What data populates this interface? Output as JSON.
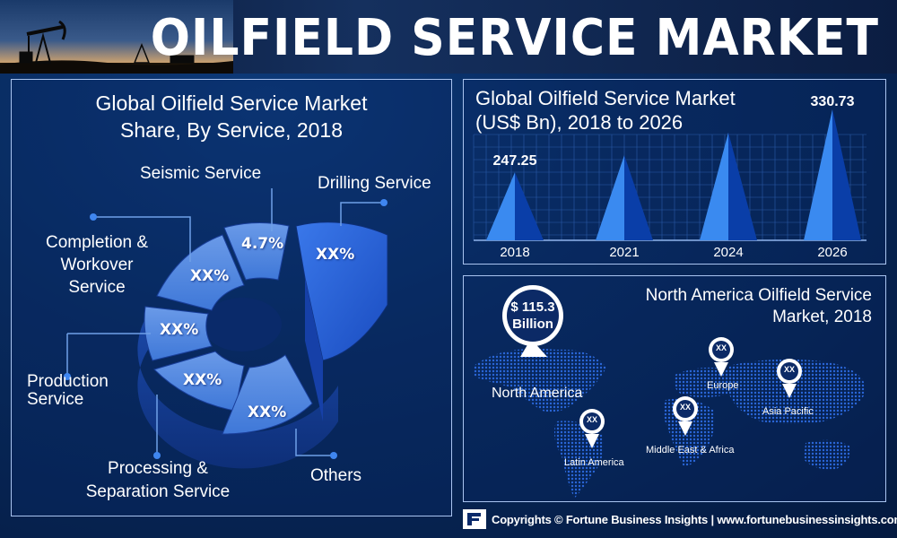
{
  "header": {
    "title": "OILFIELD SERVICE MARKET"
  },
  "pie_panel": {
    "title_line1": "Global Oilfield Service Market",
    "title_line2": "Share, By Service, 2018"
  },
  "bar_panel": {
    "title_line1": "Global Oilfield Service Market",
    "title_line2": "(US$ Bn), 2018 to 2026"
  },
  "map_panel": {
    "title_line1": "North America Oilfield Service",
    "title_line2": "Market, 2018",
    "highlight_value_line1": "$ 115.3",
    "highlight_value_line2": "Billion",
    "regions": [
      {
        "label": "North America"
      },
      {
        "label": "Europe",
        "value": "XX"
      },
      {
        "label": "Asia Pacific",
        "value": "XX"
      },
      {
        "label": "Middle East & Africa",
        "value": "XX"
      },
      {
        "label": "Latin America",
        "value": "XX"
      }
    ]
  },
  "footer": {
    "text": "Copyrights © Fortune Business Insights | www.fortunebusinessinsights.com"
  },
  "colors": {
    "background": "#082a5e",
    "panel_border": "#a9c4f0",
    "segment_light": "#4f86e0",
    "segment_dark": "#1f55c0",
    "bar_light": "#3a8af0",
    "bar_dark": "#0a3ea8"
  },
  "chart_data": [
    {
      "type": "pie",
      "title": "Global Oilfield Service Market Share, By Service, 2018",
      "style": "3d-donut",
      "slices": [
        {
          "name": "Seismic Service",
          "label": "4.7%",
          "value": 4.7
        },
        {
          "name": "Drilling Service",
          "label": "XX%",
          "value": null
        },
        {
          "name": "Completion & Workover Service",
          "label": "XX%",
          "value": null
        },
        {
          "name": "Production Service",
          "label": "XX%",
          "value": null
        },
        {
          "name": "Processing & Separation Service",
          "label": "XX%",
          "value": null
        },
        {
          "name": "Others",
          "label": "XX%",
          "value": null
        }
      ]
    },
    {
      "type": "bar",
      "style": "triangle",
      "title": "Global Oilfield Service Market (US$ Bn), 2018 to 2026",
      "categories": [
        "2018",
        "2021",
        "2024",
        "2026"
      ],
      "values": [
        247.25,
        270,
        300,
        330.73
      ],
      "data_labels": [
        "247.25",
        "",
        "",
        "330.73"
      ],
      "grid": true,
      "ylim": [
        200,
        340
      ]
    }
  ]
}
